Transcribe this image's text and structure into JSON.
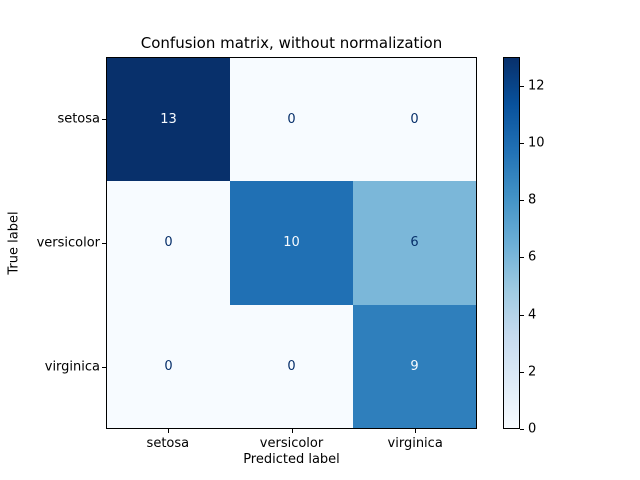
{
  "figure": {
    "background": "#ffffff",
    "text_color": "#000000"
  },
  "chart_data": {
    "type": "heatmap",
    "title": "Confusion matrix, without normalization",
    "xlabel": "Predicted label",
    "ylabel": "True label",
    "x_categories": [
      "setosa",
      "versicolor",
      "virginica"
    ],
    "y_categories": [
      "setosa",
      "versicolor",
      "virginica"
    ],
    "matrix": [
      [
        13,
        0,
        0
      ],
      [
        0,
        10,
        6
      ],
      [
        0,
        0,
        9
      ]
    ],
    "vmin": 0,
    "vmax": 13,
    "colormap": "Blues",
    "grid": false,
    "colorbar_ticks": [
      0,
      2,
      4,
      6,
      8,
      10,
      12
    ],
    "cell_colors": [
      [
        "#08306b",
        "#f7fbff",
        "#f7fbff"
      ],
      [
        "#f7fbff",
        "#2070b4",
        "#7bb7d9"
      ],
      [
        "#f7fbff",
        "#f7fbff",
        "#2f7fbc"
      ]
    ],
    "cell_text_colors": [
      [
        "#f7fbff",
        "#08306b",
        "#08306b"
      ],
      [
        "#08306b",
        "#f7fbff",
        "#08306b"
      ],
      [
        "#08306b",
        "#08306b",
        "#f7fbff"
      ]
    ],
    "colorbar_gradient_stops": [
      {
        "color": "#f7fbff",
        "pos": 0
      },
      {
        "color": "#deebf7",
        "pos": 12.5
      },
      {
        "color": "#c6dbef",
        "pos": 25
      },
      {
        "color": "#9ecae1",
        "pos": 37.5
      },
      {
        "color": "#6baed6",
        "pos": 50
      },
      {
        "color": "#4292c6",
        "pos": 62.5
      },
      {
        "color": "#2171b5",
        "pos": 75
      },
      {
        "color": "#08519c",
        "pos": 87.5
      },
      {
        "color": "#08306b",
        "pos": 100
      }
    ]
  }
}
